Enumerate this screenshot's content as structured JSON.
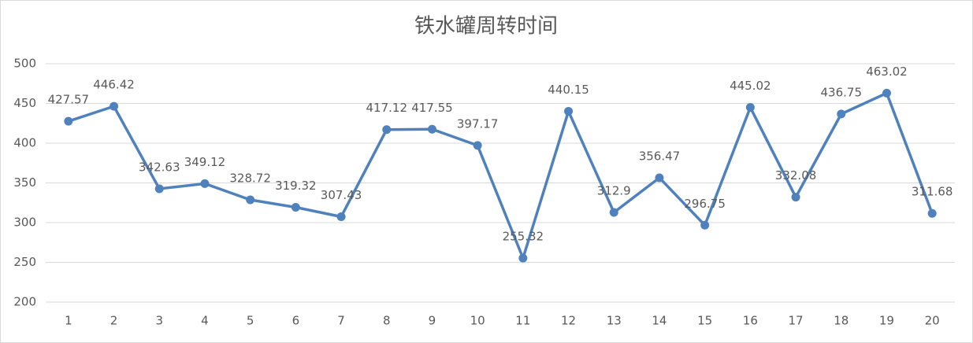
{
  "chart_data": {
    "type": "line",
    "title": "铁水罐周转时间",
    "categories": [
      "1",
      "2",
      "3",
      "4",
      "5",
      "6",
      "7",
      "8",
      "9",
      "10",
      "11",
      "12",
      "13",
      "14",
      "15",
      "16",
      "17",
      "18",
      "19",
      "20"
    ],
    "values": [
      427.57,
      446.42,
      342.63,
      349.12,
      328.72,
      319.32,
      307.43,
      417.12,
      417.55,
      397.17,
      255.32,
      440.15,
      312.9,
      356.47,
      296.75,
      445.02,
      332.08,
      436.75,
      463.02,
      311.68
    ],
    "color": "#4f81bd",
    "ylim": [
      200,
      500
    ],
    "yticks": [
      200,
      250,
      300,
      350,
      400,
      450,
      500
    ],
    "grid": true
  }
}
